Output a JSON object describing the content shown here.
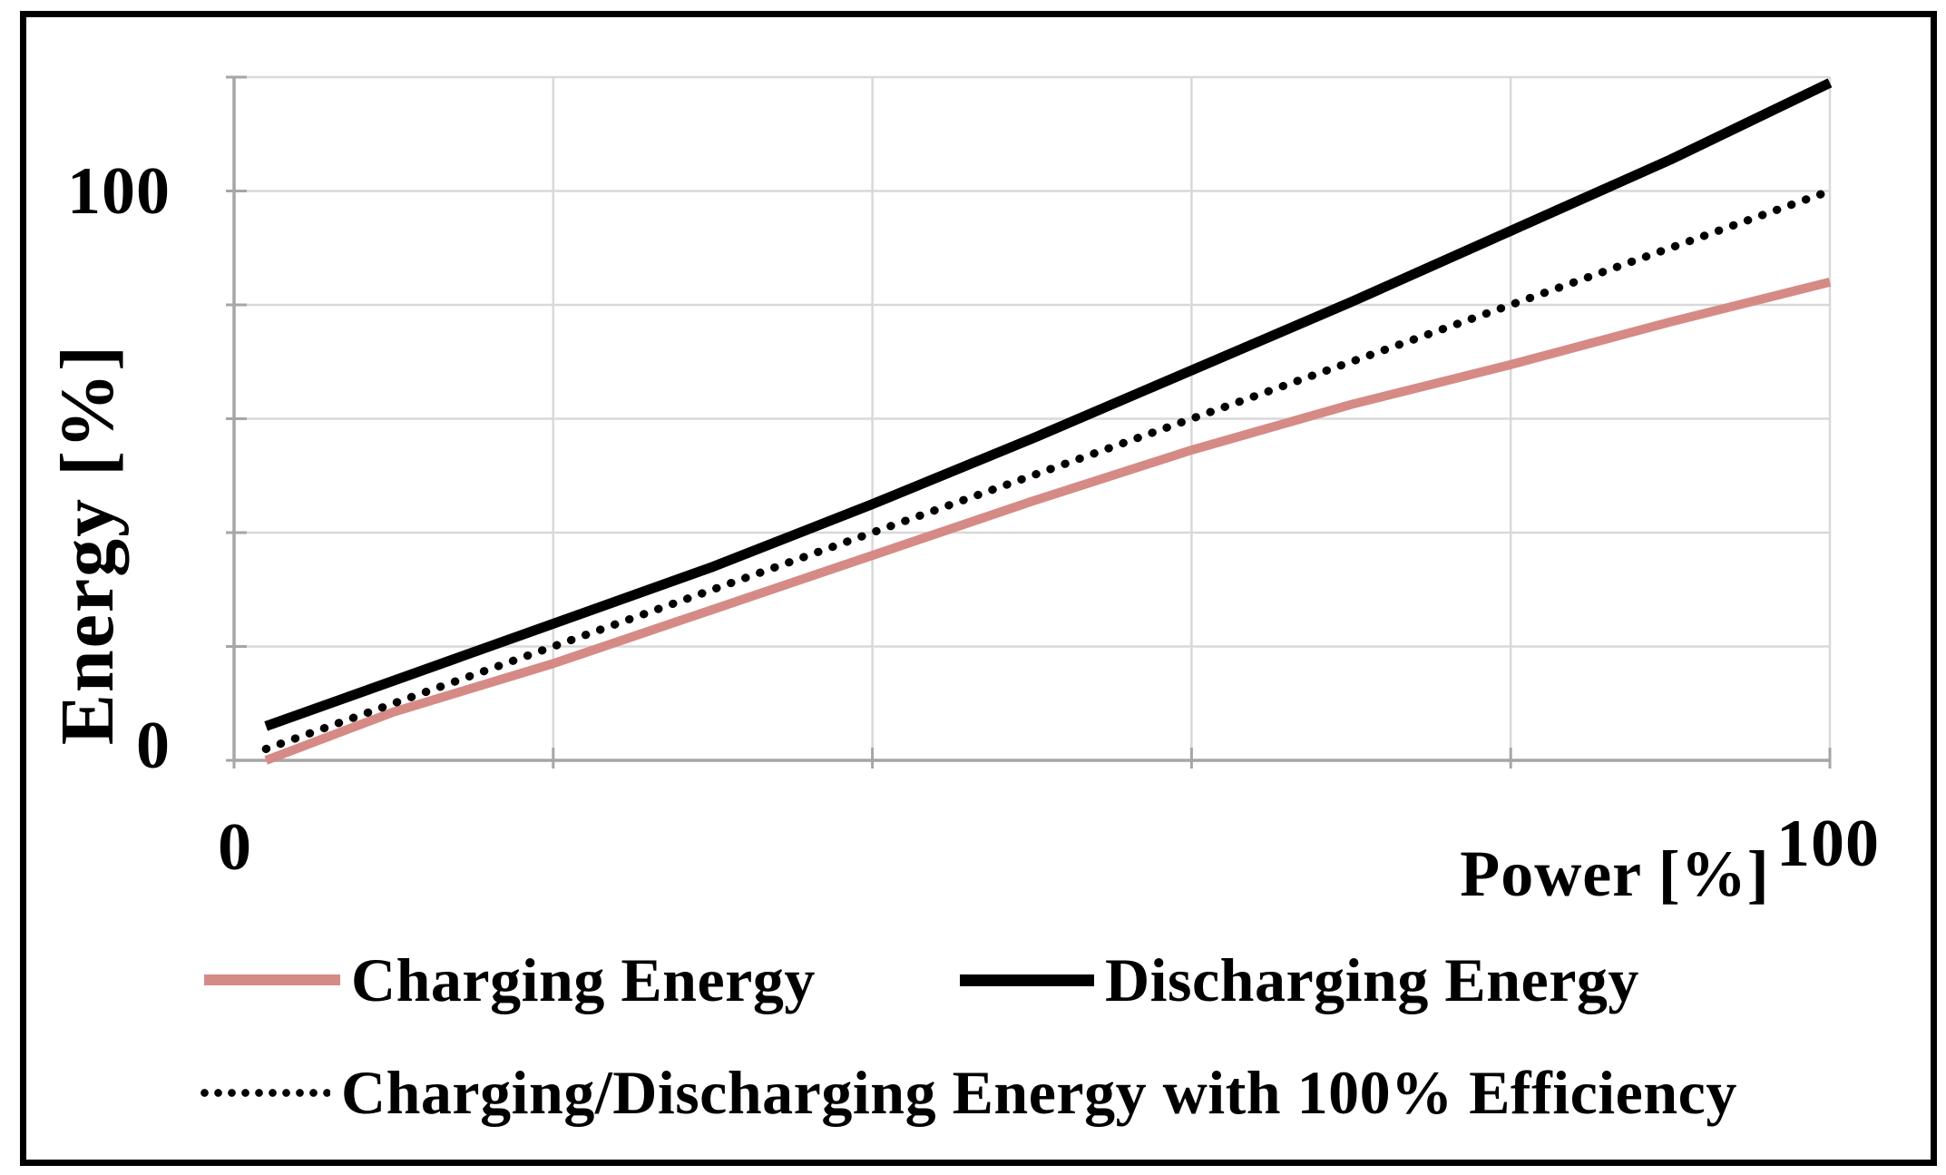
{
  "colors": {
    "ink": "#000000",
    "charging_line": "#d68a86",
    "gridline": "#d9d9d9",
    "axis_line": "#a6a6a6",
    "background": "#ffffff"
  },
  "chart_data": {
    "type": "line",
    "title": "",
    "xlabel": "Power [%]",
    "ylabel": "Energy [%]",
    "xlim": [
      0,
      100
    ],
    "ylim": [
      0,
      120
    ],
    "x_gridline_step": 20,
    "y_gridline_step": 20,
    "grid": true,
    "legend_position": "bottom",
    "x_tick_labels": [
      {
        "value": 0,
        "label": "0"
      },
      {
        "value": 100,
        "label": "100"
      }
    ],
    "y_tick_labels": [
      {
        "value": 0,
        "label": "0"
      },
      {
        "value": 100,
        "label": "100"
      }
    ],
    "series": [
      {
        "name": "Charging Energy",
        "color": "#d68a86",
        "style": "solid",
        "points": [
          [
            2,
            0
          ],
          [
            10,
            8.5
          ],
          [
            20,
            17
          ],
          [
            30,
            26.5
          ],
          [
            40,
            36
          ],
          [
            50,
            45.5
          ],
          [
            60,
            54.5
          ],
          [
            70,
            62.5
          ],
          [
            80,
            69.5
          ],
          [
            90,
            77
          ],
          [
            100,
            84
          ]
        ]
      },
      {
        "name": "Discharging Energy",
        "color": "#000000",
        "style": "solid",
        "points": [
          [
            2,
            6
          ],
          [
            10,
            14
          ],
          [
            20,
            24
          ],
          [
            30,
            34
          ],
          [
            40,
            45
          ],
          [
            50,
            56.5
          ],
          [
            60,
            68.5
          ],
          [
            70,
            80.5
          ],
          [
            80,
            93
          ],
          [
            90,
            105.5
          ],
          [
            100,
            119
          ]
        ]
      },
      {
        "name": "Charging/Discharging Energy with 100% Efficiency",
        "color": "#000000",
        "style": "dotted",
        "points": [
          [
            2,
            2
          ],
          [
            100,
            100
          ]
        ]
      }
    ]
  }
}
